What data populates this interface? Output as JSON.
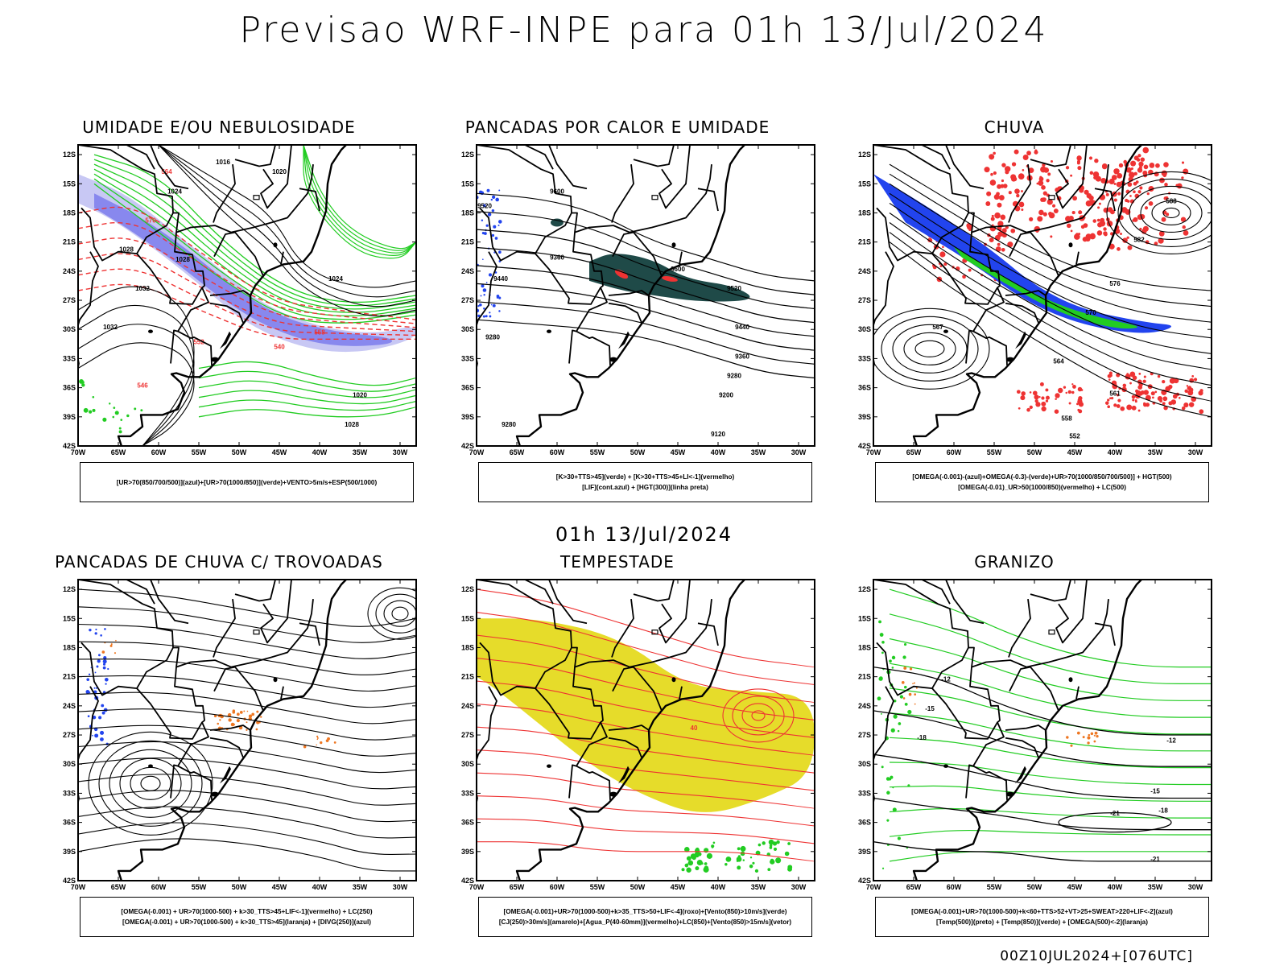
{
  "title": "Previsao WRF-INPE  para 01h 13/Jul/2024",
  "mid_title": "01h 13/Jul/2024",
  "footer": "00Z10JUL2024+[076UTC]",
  "axes": {
    "lat_labels": [
      "12S",
      "15S",
      "18S",
      "21S",
      "24S",
      "27S",
      "30S",
      "33S",
      "36S",
      "39S",
      "42S"
    ],
    "lon_labels": [
      "70W",
      "65W",
      "60W",
      "55W",
      "50W",
      "45W",
      "40W",
      "35W",
      "30W"
    ]
  },
  "colors": {
    "green": "#22cc22",
    "red": "#ee3333",
    "blue": "#2244ee",
    "purple": "#8888ee",
    "lavender": "#c8c8f4",
    "orange": "#ee7722",
    "yellow": "#e6dc2a",
    "darkteal": "#1f4a48"
  },
  "panels": [
    {
      "id": "umidade",
      "title": "UMIDADE E/OU NEBULOSIDADE",
      "legend": [
        "[UR>70(850/700/500)](azul)+[UR>70(1000/850)](verde)+VENTO>5m/s+ESP(500/1000)"
      ],
      "contour_labels": [
        "1024",
        "1028",
        "1032",
        "1020",
        "1016",
        "1032",
        "1028",
        "564",
        "570",
        "552",
        "546",
        "540",
        "558",
        "1024",
        "1020",
        "1028"
      ]
    },
    {
      "id": "pancadas-calor",
      "title": "PANCADAS POR CALOR E UMIDADE",
      "legend": [
        "[K>30+TTS>45](verde) + [K>30+TTS>45+LI<-1](vermelho)",
        "[LIF](cont.azul) + [HGT(300)](linha preta)"
      ],
      "contour_labels": [
        "9520",
        "9600",
        "9440",
        "9360",
        "9280",
        "9600",
        "9520",
        "9440",
        "9360",
        "9280",
        "9200",
        "9120",
        "9280"
      ]
    },
    {
      "id": "chuva",
      "title": "CHUVA",
      "legend": [
        "[OMEGA(-0.001)-(azul)+OMEGA(-0.3)-(verde)+UR>70(1000/850/700/500)] + HGT(500)",
        "[OMEGA(-0.01)_UR>50(1000/850)(vermelho) + LC(500)"
      ],
      "contour_labels": [
        "588",
        "582",
        "576",
        "570",
        "567",
        "564",
        "561",
        "558",
        "552"
      ]
    },
    {
      "id": "trovoadas",
      "title": "PANCADAS DE CHUVA C/ TROVOADAS",
      "legend": [
        "[OMEGA(-0.001) + UR>70(1000-500) + k>30_TTS>45+LIF<-1](vermelho) + LC(250)",
        "[OMEGA(-0.001) + UR>70(1000-500) + k>30_TTS>45](laranja) + [DIVG(250)](azul)"
      ],
      "contour_labels": []
    },
    {
      "id": "tempestade",
      "title": "TEMPESTADE",
      "legend": [
        "[OMEGA(-0.001)+UR>70(1000-500)+k>35_TTS>50+LIF<-4](roxo)+[Vento(850)>10m/s](verde)",
        "[CJ(250)>30m/s](amarelo)+[Agua_P(40-60mm)](vermelho)+LC(850)+[Vento(850)>15m/s](vetor)"
      ],
      "contour_labels": [
        "40"
      ]
    },
    {
      "id": "granizo",
      "title": "GRANIZO",
      "legend": [
        "[OMEGA(-0.001)+UR>70(1000-500)+k<60+TTS>52+VT>25+SWEAT>220+LIF<-2](azul)",
        "[Temp(500)](preto) + [Temp(850)](verde) + [OMEGA(500)<-2](laranja)"
      ],
      "contour_labels": [
        "-12",
        "-15",
        "-18",
        "-21",
        "-12",
        "-15",
        "-18",
        "-21"
      ]
    }
  ]
}
